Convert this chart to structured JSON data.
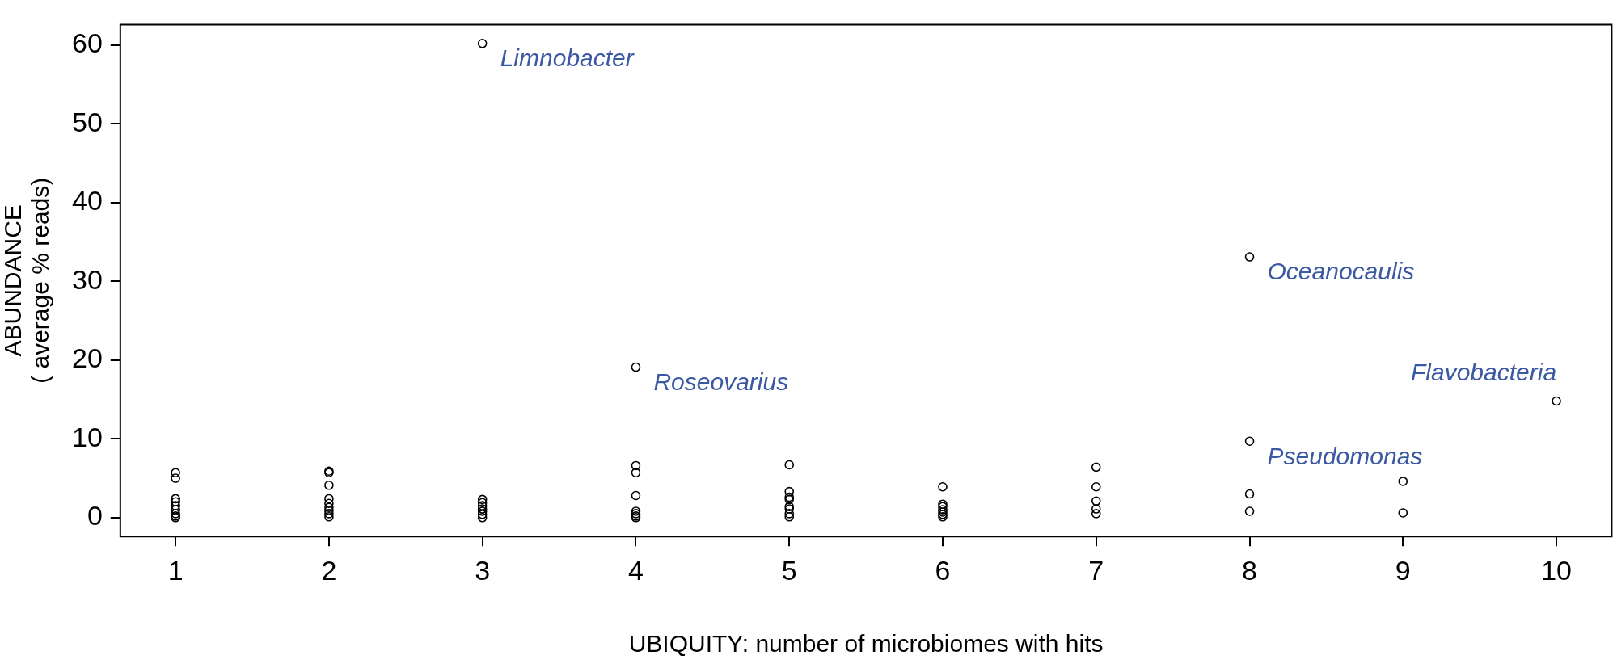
{
  "chart_data": {
    "type": "scatter",
    "xlabel": "UBIQUITY: number of microbiomes with hits",
    "ylabel": "ABUNDANCE\n( average % reads)",
    "series": [
      {
        "color": "#000000",
        "x": [
          1,
          1,
          1,
          1,
          1,
          1,
          1,
          1,
          1,
          2,
          2,
          2,
          2,
          2,
          2,
          2,
          2,
          2,
          3,
          3,
          3,
          3,
          3,
          3,
          3,
          3,
          4,
          4,
          4,
          4,
          4,
          4,
          4,
          4,
          5,
          5,
          5,
          5,
          5,
          5,
          5,
          5,
          6,
          6,
          6,
          6,
          6,
          6,
          6,
          7,
          7,
          7,
          7,
          7,
          8,
          8,
          8,
          8,
          9,
          9,
          10
        ],
        "values": [
          5.7,
          5.0,
          2.4,
          2.0,
          1.5,
          1.0,
          0.5,
          0.2,
          0,
          5.9,
          5.7,
          4.1,
          2.4,
          1.8,
          1.3,
          0.9,
          0.5,
          0.1,
          60.2,
          2.3,
          1.9,
          1.5,
          1.1,
          0.8,
          0.4,
          0,
          19.1,
          6.6,
          5.7,
          2.8,
          0.8,
          0.5,
          0.2,
          0,
          6.7,
          3.3,
          2.6,
          2.3,
          1.4,
          1.1,
          0.5,
          0.1,
          3.9,
          1.7,
          1.4,
          1.0,
          0.7,
          0.4,
          0.1,
          6.4,
          3.9,
          2.1,
          1.1,
          0.5,
          33.1,
          9.7,
          3.0,
          0.8,
          4.6,
          0.6,
          14.8
        ]
      }
    ],
    "annotations": [
      {
        "text": "Limnobacter",
        "x": 3,
        "y": 60.2
      },
      {
        "text": "Roseovarius",
        "x": 4,
        "y": 19.1
      },
      {
        "text": "Oceanocaulis",
        "x": 8,
        "y": 33.1
      },
      {
        "text": "Pseudomonas",
        "x": 8,
        "y": 9.7
      },
      {
        "text": "Flavobacteria",
        "x": 10,
        "y": 14.8
      }
    ],
    "xlim": [
      0.64,
      10.36
    ],
    "ylim": [
      -2.4,
      62.6
    ],
    "xticks": [
      1,
      2,
      3,
      4,
      5,
      6,
      7,
      8,
      9,
      10
    ],
    "yticks": [
      0,
      10,
      20,
      30,
      40,
      50,
      60
    ],
    "marker": "circle",
    "grid": false,
    "legend": false
  }
}
